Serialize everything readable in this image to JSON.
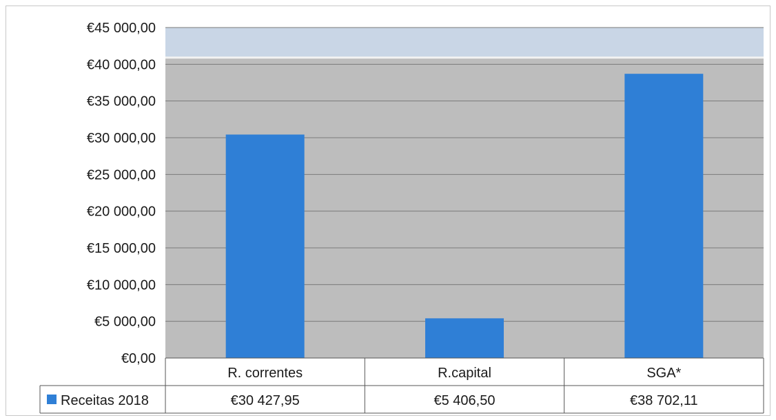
{
  "chart_data": {
    "type": "bar",
    "title": "",
    "xlabel": "",
    "ylabel": "",
    "categories": [
      "R. correntes",
      "R.capital",
      "SGA*"
    ],
    "series": [
      {
        "name": "Receitas 2018",
        "values": [
          30427.95,
          5406.5,
          38702.11
        ],
        "value_labels": [
          "€30 427,95",
          "€5 406,50",
          "€38 702,11"
        ],
        "color": "#2f7fd6"
      }
    ],
    "ylim": [
      0,
      45000
    ],
    "yticks": [
      0,
      5000,
      10000,
      15000,
      20000,
      25000,
      30000,
      35000,
      40000,
      45000
    ],
    "ytick_labels": [
      "€0,00",
      "€5 000,00",
      "€10 000,00",
      "€15 000,00",
      "€20 000,00",
      "€25 000,00",
      "€30 000,00",
      "€35 000,00",
      "€40 000,00",
      "€45 000,00"
    ],
    "grid": true,
    "legend": "data-table",
    "colors": {
      "plot_bg": "#bdbdbd",
      "plot_bg_top": "#c9d6e6",
      "gridline": "#7a7a7a"
    }
  }
}
